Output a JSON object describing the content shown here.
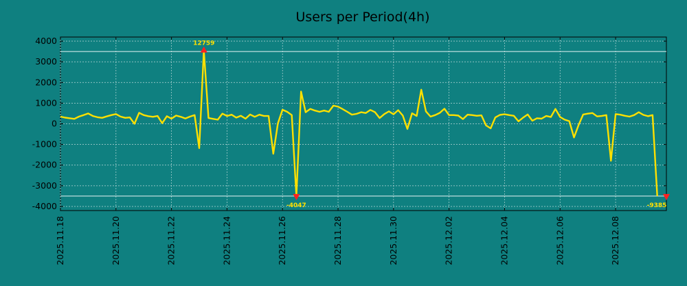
{
  "chart_data": {
    "type": "line",
    "title": "Users per Period(4h)",
    "xlabel": "",
    "ylabel": "",
    "ylim": [
      -4200,
      4200
    ],
    "yticks": [
      4000,
      3000,
      2000,
      1000,
      0,
      -1000,
      -2000,
      -3000,
      -4000
    ],
    "ytick_labels": [
      "4000",
      "3000",
      "2000",
      "1000",
      "0",
      "-1000",
      "-2000",
      "-3000",
      "-4000"
    ],
    "xlim": [
      0,
      21.83
    ],
    "xticks": [
      0,
      2,
      4,
      6,
      8,
      10,
      12,
      14,
      16,
      18,
      20
    ],
    "xtick_labels": [
      "2025.11.18",
      "2025.11.20",
      "2025.11.22",
      "2025.11.24",
      "2025.11.26",
      "2025.11.28",
      "2025.11.30",
      "2025.12.02",
      "2025.12.04",
      "2025.12.06",
      "2025.12.08"
    ],
    "reference_lines": [
      3500,
      -3500
    ],
    "grid": true,
    "line_color": "#ffe000",
    "marker_color": "#ff2020",
    "background": "#0f8080",
    "series": [
      {
        "x_start": "2025.11.18",
        "step_hours": 4,
        "values": [
          350,
          300,
          270,
          240,
          350,
          420,
          500,
          380,
          320,
          290,
          360,
          420,
          470,
          350,
          290,
          310,
          0,
          530,
          420,
          370,
          340,
          380,
          30,
          370,
          250,
          400,
          340,
          260,
          350,
          420,
          -1180,
          3550,
          280,
          240,
          200,
          490,
          380,
          440,
          300,
          390,
          250,
          450,
          340,
          440,
          380,
          380,
          -1450,
          20,
          680,
          580,
          420,
          -3500,
          1560,
          560,
          720,
          640,
          580,
          640,
          580,
          880,
          830,
          710,
          580,
          440,
          480,
          560,
          520,
          670,
          560,
          280,
          470,
          600,
          460,
          660,
          400,
          -250,
          510,
          380,
          1650,
          600,
          350,
          420,
          530,
          730,
          420,
          420,
          400,
          230,
          440,
          420,
          390,
          410,
          -80,
          -220,
          310,
          430,
          460,
          420,
          390,
          120,
          300,
          450,
          150,
          270,
          250,
          380,
          330,
          720,
          330,
          200,
          130,
          -660,
          -60,
          450,
          490,
          520,
          360,
          380,
          420,
          -1790,
          470,
          440,
          390,
          350,
          420,
          560,
          430,
          370,
          420,
          -3500
        ]
      }
    ],
    "annotations": [
      {
        "label": "12759",
        "x": 5.167,
        "y": 3550
      },
      {
        "label": "-4047",
        "x": 8.5,
        "y": -3500
      },
      {
        "label": "-9385",
        "x": 21.83,
        "y": -3500
      }
    ]
  }
}
